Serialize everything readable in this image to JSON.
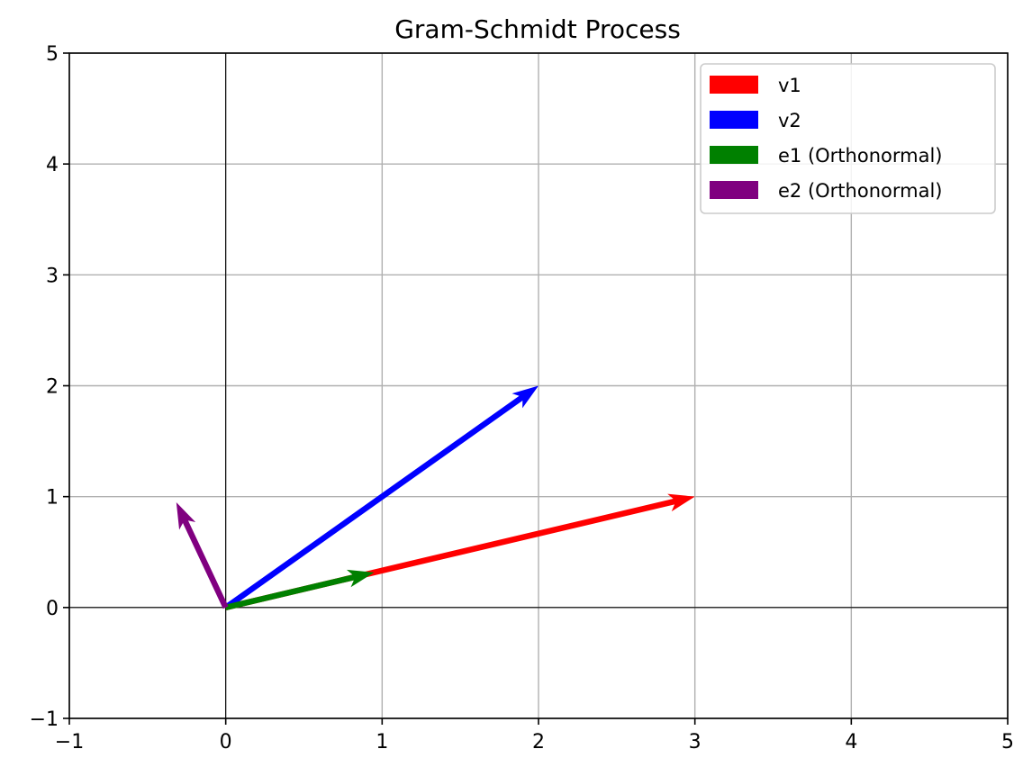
{
  "chart_data": {
    "type": "quiver",
    "title": "Gram-Schmidt Process",
    "xlabel": "",
    "ylabel": "",
    "xlim": [
      -1,
      5
    ],
    "ylim": [
      -1,
      5
    ],
    "xticks": [
      -1,
      0,
      1,
      2,
      3,
      4,
      5
    ],
    "yticks": [
      -1,
      0,
      1,
      2,
      3,
      4,
      5
    ],
    "grid": true,
    "axis_lines_at_zero": true,
    "legend_position": "top-right",
    "vectors": [
      {
        "name": "v1",
        "origin": [
          0,
          0
        ],
        "end": [
          3,
          1
        ],
        "color": "#ff0000"
      },
      {
        "name": "v2",
        "origin": [
          0,
          0
        ],
        "end": [
          2,
          2
        ],
        "color": "#0000ff"
      },
      {
        "name": "e1 (Orthonormal)",
        "origin": [
          0,
          0
        ],
        "end": [
          0.949,
          0.316
        ],
        "color": "#008000"
      },
      {
        "name": "e2 (Orthonormal)",
        "origin": [
          0,
          0
        ],
        "end": [
          -0.316,
          0.949
        ],
        "color": "#800080"
      }
    ]
  }
}
